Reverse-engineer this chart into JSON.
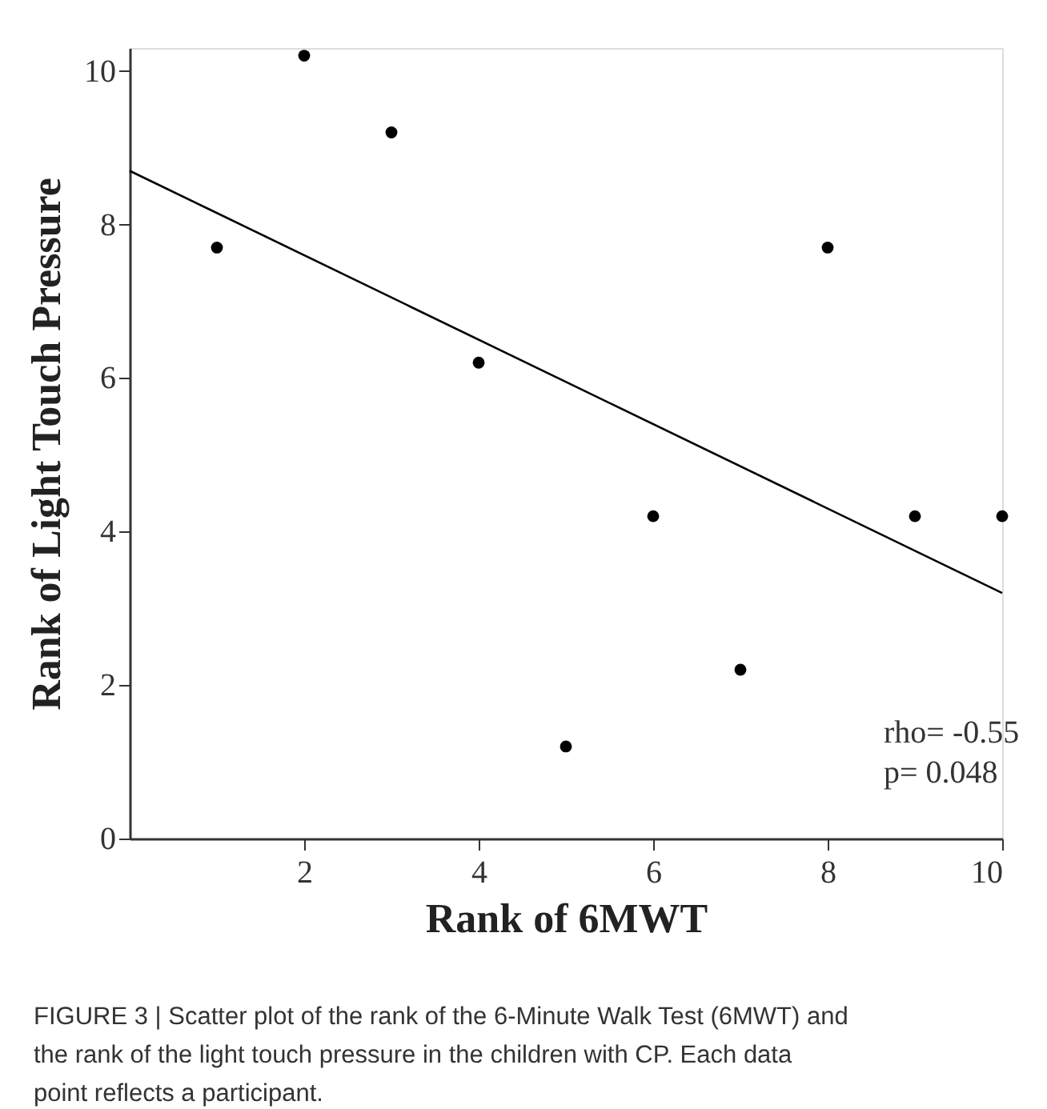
{
  "chart_data": {
    "type": "scatter",
    "xlabel": "Rank of 6MWT",
    "ylabel": "Rank of Light Touch Pressure",
    "x": [
      1,
      2,
      3,
      4,
      5,
      6,
      7,
      8,
      9,
      10
    ],
    "series": [
      {
        "color": "#000000",
        "marker": "circle",
        "values": [
          7.7,
          10.2,
          9.2,
          6.2,
          1.2,
          4.2,
          2.2,
          7.7,
          4.2,
          4.2
        ]
      },
      {
        "type": "line",
        "color": "#000000",
        "x": [
          0,
          10
        ],
        "values": [
          8.7,
          3.2
        ]
      }
    ],
    "xlim": [
      0,
      10
    ],
    "ylim": [
      0,
      10.3
    ],
    "xticks": [
      2,
      4,
      6,
      8,
      10
    ],
    "yticks": [
      0,
      2,
      4,
      6,
      8,
      10
    ],
    "grid": false,
    "line_style": "solid",
    "annotations": [
      "rho= -0.55",
      "p= 0.048",
      "FIGURE 3 | Scatter plot of the rank of the 6-Minute Walk Test (6MWT) and the rank of the light touch pressure in the children with CP. Each data point reflects a participant."
    ]
  }
}
